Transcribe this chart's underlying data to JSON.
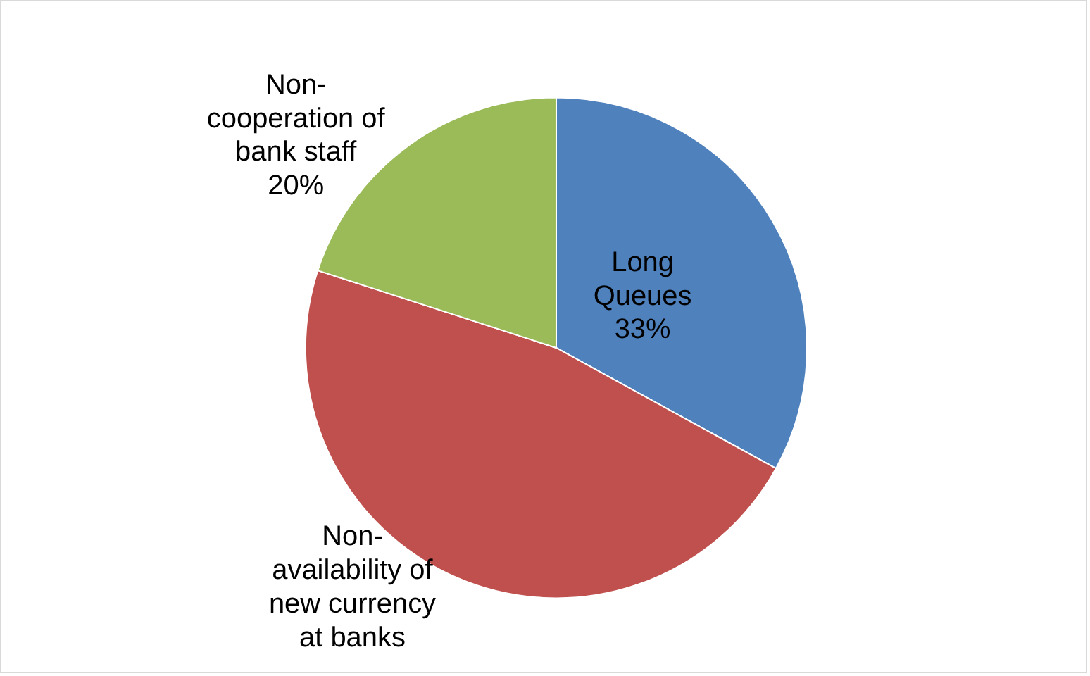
{
  "chart_data": {
    "type": "pie",
    "categories": [
      "Long Queues",
      "Non-availability of new currency at banks",
      "Non-cooperation of bank staff"
    ],
    "values": [
      33,
      47,
      20
    ],
    "value_labels": [
      "33%",
      null,
      "20%"
    ],
    "colors": [
      "#4f81bd",
      "#c0504d",
      "#9bbb59"
    ],
    "legend": false
  }
}
